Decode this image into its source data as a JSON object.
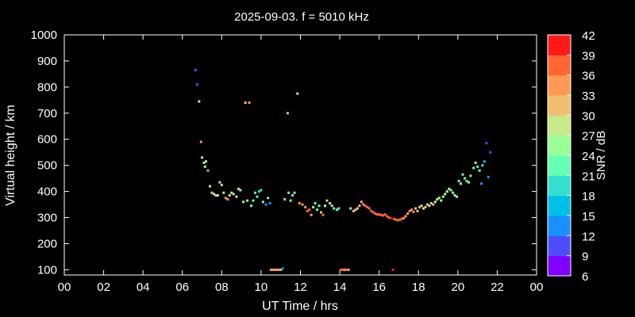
{
  "chart_data": {
    "type": "scatter",
    "title": "2025-09-03. f = 5010 kHz",
    "xlabel": "UT Time / hrs",
    "ylabel": "Virtual height / km",
    "xlim": [
      0,
      24
    ],
    "ylim": [
      80,
      1000
    ],
    "xticks": [
      "00",
      "02",
      "04",
      "06",
      "08",
      "10",
      "12",
      "14",
      "16",
      "18",
      "20",
      "22",
      "00"
    ],
    "yticks": [
      100,
      200,
      300,
      400,
      500,
      600,
      700,
      800,
      900,
      1000
    ],
    "grid": false,
    "colorbar": {
      "label": "SNR / dB",
      "range": [
        6,
        42
      ],
      "ticks": [
        6,
        9,
        12,
        15,
        18,
        21,
        24,
        27,
        30,
        33,
        36,
        39,
        42
      ],
      "colors": [
        "#8000ff",
        "#4d4dff",
        "#1a90ff",
        "#00c0e8",
        "#33e0d0",
        "#66ffb3",
        "#99ff99",
        "#c8e88a",
        "#f0c070",
        "#ff9955",
        "#ff6633",
        "#ff1a1a"
      ]
    },
    "points": [
      [
        6.67,
        865,
        11
      ],
      [
        6.75,
        810,
        11
      ],
      [
        6.85,
        745,
        24
      ],
      [
        6.95,
        590,
        33
      ],
      [
        7.0,
        530,
        26
      ],
      [
        7.1,
        510,
        28
      ],
      [
        7.15,
        495,
        26
      ],
      [
        7.2,
        515,
        27
      ],
      [
        7.3,
        480,
        34
      ],
      [
        7.4,
        420,
        24
      ],
      [
        7.5,
        395,
        27
      ],
      [
        7.6,
        390,
        27
      ],
      [
        7.7,
        385,
        28
      ],
      [
        7.8,
        385,
        29
      ],
      [
        7.9,
        435,
        25
      ],
      [
        8.0,
        425,
        27
      ],
      [
        8.1,
        395,
        27
      ],
      [
        8.2,
        375,
        33
      ],
      [
        8.3,
        370,
        35
      ],
      [
        8.4,
        385,
        29
      ],
      [
        8.5,
        395,
        29
      ],
      [
        8.6,
        390,
        27
      ],
      [
        8.75,
        380,
        28
      ],
      [
        8.85,
        410,
        25
      ],
      [
        8.95,
        405,
        25
      ],
      [
        9.1,
        360,
        27
      ],
      [
        9.2,
        740,
        32
      ],
      [
        9.3,
        365,
        26
      ],
      [
        9.4,
        740,
        35
      ],
      [
        9.5,
        345,
        21
      ],
      [
        9.6,
        365,
        22
      ],
      [
        9.7,
        395,
        22
      ],
      [
        9.8,
        380,
        21
      ],
      [
        9.9,
        400,
        20
      ],
      [
        10.0,
        405,
        20
      ],
      [
        10.1,
        360,
        22
      ],
      [
        10.25,
        350,
        12
      ],
      [
        10.35,
        375,
        21
      ],
      [
        10.45,
        355,
        12
      ],
      [
        10.5,
        100,
        35
      ],
      [
        10.6,
        100,
        35
      ],
      [
        10.7,
        100,
        33
      ],
      [
        10.8,
        100,
        34
      ],
      [
        10.9,
        100,
        35
      ],
      [
        11.0,
        100,
        30
      ],
      [
        11.1,
        105,
        12
      ],
      [
        11.2,
        370,
        23
      ],
      [
        11.35,
        700,
        22
      ],
      [
        11.4,
        395,
        22
      ],
      [
        11.5,
        365,
        24
      ],
      [
        11.6,
        385,
        22
      ],
      [
        11.7,
        395,
        23
      ],
      [
        11.85,
        775,
        26
      ],
      [
        11.95,
        355,
        34
      ],
      [
        12.1,
        350,
        33
      ],
      [
        12.25,
        340,
        35
      ],
      [
        12.35,
        325,
        37
      ],
      [
        12.45,
        330,
        37
      ],
      [
        12.55,
        310,
        35
      ],
      [
        12.65,
        340,
        25
      ],
      [
        12.75,
        355,
        22
      ],
      [
        12.85,
        330,
        22
      ],
      [
        12.95,
        345,
        21
      ],
      [
        13.05,
        320,
        30
      ],
      [
        13.15,
        310,
        36
      ],
      [
        13.25,
        345,
        26
      ],
      [
        13.35,
        365,
        30
      ],
      [
        13.5,
        355,
        27
      ],
      [
        13.6,
        345,
        27
      ],
      [
        13.7,
        335,
        22
      ],
      [
        13.85,
        330,
        23
      ],
      [
        13.95,
        335,
        21
      ],
      [
        14.05,
        100,
        36
      ],
      [
        14.15,
        100,
        36
      ],
      [
        14.25,
        100,
        35
      ],
      [
        14.35,
        100,
        36
      ],
      [
        14.45,
        100,
        35
      ],
      [
        14.55,
        335,
        24
      ],
      [
        14.7,
        325,
        30
      ],
      [
        14.8,
        330,
        31
      ],
      [
        14.9,
        335,
        31
      ],
      [
        15.0,
        345,
        32
      ],
      [
        15.1,
        360,
        31
      ],
      [
        15.2,
        350,
        35
      ],
      [
        15.3,
        345,
        36
      ],
      [
        15.4,
        340,
        37
      ],
      [
        15.5,
        335,
        37
      ],
      [
        15.6,
        325,
        37
      ],
      [
        15.7,
        320,
        38
      ],
      [
        15.8,
        315,
        38
      ],
      [
        15.9,
        312,
        37
      ],
      [
        16.0,
        312,
        38
      ],
      [
        16.1,
        310,
        38
      ],
      [
        16.2,
        308,
        37
      ],
      [
        16.3,
        312,
        38
      ],
      [
        16.4,
        305,
        38
      ],
      [
        16.5,
        300,
        37
      ],
      [
        16.6,
        298,
        39
      ],
      [
        16.7,
        100,
        42
      ],
      [
        16.75,
        295,
        38
      ],
      [
        16.85,
        292,
        38
      ],
      [
        16.95,
        290,
        37
      ],
      [
        17.05,
        292,
        37
      ],
      [
        17.15,
        295,
        36
      ],
      [
        17.25,
        298,
        35
      ],
      [
        17.35,
        305,
        34
      ],
      [
        17.45,
        315,
        34
      ],
      [
        17.55,
        325,
        35
      ],
      [
        17.65,
        330,
        33
      ],
      [
        17.75,
        322,
        33
      ],
      [
        17.85,
        335,
        31
      ],
      [
        17.95,
        325,
        30
      ],
      [
        18.05,
        340,
        32
      ],
      [
        18.15,
        345,
        29
      ],
      [
        18.25,
        335,
        28
      ],
      [
        18.35,
        340,
        30
      ],
      [
        18.45,
        350,
        31
      ],
      [
        18.55,
        345,
        28
      ],
      [
        18.65,
        355,
        31
      ],
      [
        18.75,
        350,
        30
      ],
      [
        18.85,
        360,
        28
      ],
      [
        18.95,
        370,
        25
      ],
      [
        19.05,
        375,
        24
      ],
      [
        19.15,
        365,
        25
      ],
      [
        19.25,
        380,
        24
      ],
      [
        19.35,
        390,
        26
      ],
      [
        19.45,
        400,
        25
      ],
      [
        19.55,
        410,
        26
      ],
      [
        19.65,
        405,
        25
      ],
      [
        19.75,
        395,
        26
      ],
      [
        19.85,
        385,
        25
      ],
      [
        19.95,
        380,
        26
      ],
      [
        20.05,
        440,
        23
      ],
      [
        20.15,
        430,
        25
      ],
      [
        20.25,
        465,
        22
      ],
      [
        20.35,
        450,
        22
      ],
      [
        20.45,
        440,
        23
      ],
      [
        20.55,
        435,
        24
      ],
      [
        20.65,
        460,
        22
      ],
      [
        20.8,
        490,
        23
      ],
      [
        20.9,
        510,
        24
      ],
      [
        21.0,
        495,
        22
      ],
      [
        21.1,
        480,
        22
      ],
      [
        21.2,
        430,
        14
      ],
      [
        21.25,
        500,
        20
      ],
      [
        21.35,
        515,
        16
      ],
      [
        21.45,
        585,
        11
      ],
      [
        21.55,
        455,
        12
      ],
      [
        21.65,
        550,
        10
      ]
    ]
  }
}
